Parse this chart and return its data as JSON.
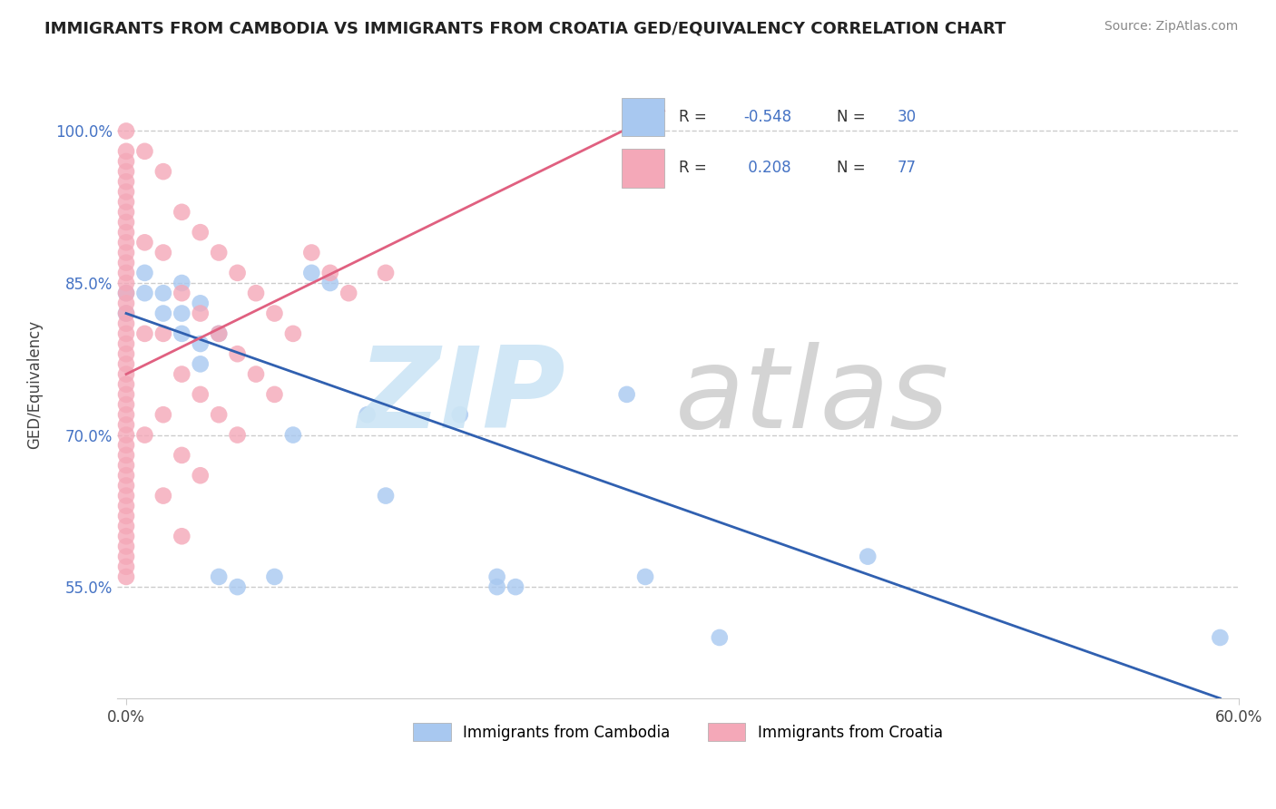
{
  "title": "IMMIGRANTS FROM CAMBODIA VS IMMIGRANTS FROM CROATIA GED/EQUIVALENCY CORRELATION CHART",
  "source": "Source: ZipAtlas.com",
  "ylabel": "GED/Equivalency",
  "xlim": [
    -0.005,
    0.6
  ],
  "ylim": [
    0.44,
    1.06
  ],
  "color_cambodia": "#a8c8f0",
  "color_croatia": "#f4a8b8",
  "line_color_cambodia": "#3060b0",
  "line_color_croatia": "#e06080",
  "legend_r_cambodia": "-0.548",
  "legend_n_cambodia": "30",
  "legend_r_croatia": "0.208",
  "legend_n_croatia": "77",
  "yticks": [
    0.55,
    0.7,
    0.85,
    1.0
  ],
  "ytick_labels": [
    "55.0%",
    "70.0%",
    "85.0%",
    "100.0%"
  ],
  "xticks": [
    0.0,
    0.6
  ],
  "xtick_labels": [
    "0.0%",
    "60.0%"
  ],
  "cambodia_scatter": [
    [
      0.0,
      0.84
    ],
    [
      0.0,
      0.82
    ],
    [
      0.01,
      0.86
    ],
    [
      0.01,
      0.84
    ],
    [
      0.02,
      0.84
    ],
    [
      0.02,
      0.82
    ],
    [
      0.03,
      0.85
    ],
    [
      0.03,
      0.82
    ],
    [
      0.03,
      0.8
    ],
    [
      0.04,
      0.83
    ],
    [
      0.04,
      0.79
    ],
    [
      0.04,
      0.77
    ],
    [
      0.05,
      0.8
    ],
    [
      0.05,
      0.56
    ],
    [
      0.06,
      0.55
    ],
    [
      0.08,
      0.56
    ],
    [
      0.09,
      0.7
    ],
    [
      0.1,
      0.86
    ],
    [
      0.11,
      0.85
    ],
    [
      0.13,
      0.72
    ],
    [
      0.14,
      0.64
    ],
    [
      0.18,
      0.72
    ],
    [
      0.2,
      0.56
    ],
    [
      0.2,
      0.55
    ],
    [
      0.21,
      0.55
    ],
    [
      0.27,
      0.74
    ],
    [
      0.28,
      0.56
    ],
    [
      0.32,
      0.5
    ],
    [
      0.4,
      0.58
    ],
    [
      0.59,
      0.5
    ]
  ],
  "croatia_scatter": [
    [
      0.0,
      1.0
    ],
    [
      0.0,
      0.98
    ],
    [
      0.0,
      0.97
    ],
    [
      0.0,
      0.96
    ],
    [
      0.0,
      0.95
    ],
    [
      0.0,
      0.94
    ],
    [
      0.0,
      0.93
    ],
    [
      0.0,
      0.92
    ],
    [
      0.0,
      0.91
    ],
    [
      0.0,
      0.9
    ],
    [
      0.0,
      0.89
    ],
    [
      0.0,
      0.88
    ],
    [
      0.0,
      0.87
    ],
    [
      0.0,
      0.86
    ],
    [
      0.0,
      0.85
    ],
    [
      0.0,
      0.84
    ],
    [
      0.0,
      0.83
    ],
    [
      0.0,
      0.82
    ],
    [
      0.0,
      0.81
    ],
    [
      0.0,
      0.8
    ],
    [
      0.0,
      0.79
    ],
    [
      0.0,
      0.78
    ],
    [
      0.0,
      0.77
    ],
    [
      0.0,
      0.76
    ],
    [
      0.0,
      0.75
    ],
    [
      0.0,
      0.74
    ],
    [
      0.0,
      0.73
    ],
    [
      0.0,
      0.72
    ],
    [
      0.0,
      0.71
    ],
    [
      0.0,
      0.7
    ],
    [
      0.0,
      0.69
    ],
    [
      0.0,
      0.68
    ],
    [
      0.0,
      0.67
    ],
    [
      0.0,
      0.66
    ],
    [
      0.0,
      0.65
    ],
    [
      0.0,
      0.64
    ],
    [
      0.0,
      0.63
    ],
    [
      0.0,
      0.62
    ],
    [
      0.0,
      0.61
    ],
    [
      0.0,
      0.6
    ],
    [
      0.0,
      0.59
    ],
    [
      0.0,
      0.58
    ],
    [
      0.0,
      0.57
    ],
    [
      0.0,
      0.56
    ],
    [
      0.01,
      0.98
    ],
    [
      0.01,
      0.89
    ],
    [
      0.01,
      0.8
    ],
    [
      0.01,
      0.7
    ],
    [
      0.02,
      0.96
    ],
    [
      0.02,
      0.88
    ],
    [
      0.02,
      0.8
    ],
    [
      0.02,
      0.72
    ],
    [
      0.02,
      0.64
    ],
    [
      0.03,
      0.92
    ],
    [
      0.03,
      0.84
    ],
    [
      0.03,
      0.76
    ],
    [
      0.03,
      0.68
    ],
    [
      0.03,
      0.6
    ],
    [
      0.04,
      0.9
    ],
    [
      0.04,
      0.82
    ],
    [
      0.04,
      0.74
    ],
    [
      0.04,
      0.66
    ],
    [
      0.05,
      0.88
    ],
    [
      0.05,
      0.8
    ],
    [
      0.05,
      0.72
    ],
    [
      0.06,
      0.86
    ],
    [
      0.06,
      0.78
    ],
    [
      0.06,
      0.7
    ],
    [
      0.07,
      0.84
    ],
    [
      0.07,
      0.76
    ],
    [
      0.08,
      0.82
    ],
    [
      0.08,
      0.74
    ],
    [
      0.09,
      0.8
    ],
    [
      0.1,
      0.88
    ],
    [
      0.11,
      0.86
    ],
    [
      0.12,
      0.84
    ],
    [
      0.14,
      0.86
    ]
  ],
  "cambodia_line_x": [
    0.0,
    0.59
  ],
  "cambodia_line_y": [
    0.82,
    0.44
  ],
  "croatia_line_x": [
    0.0,
    0.29
  ],
  "croatia_line_y": [
    0.76,
    1.02
  ]
}
